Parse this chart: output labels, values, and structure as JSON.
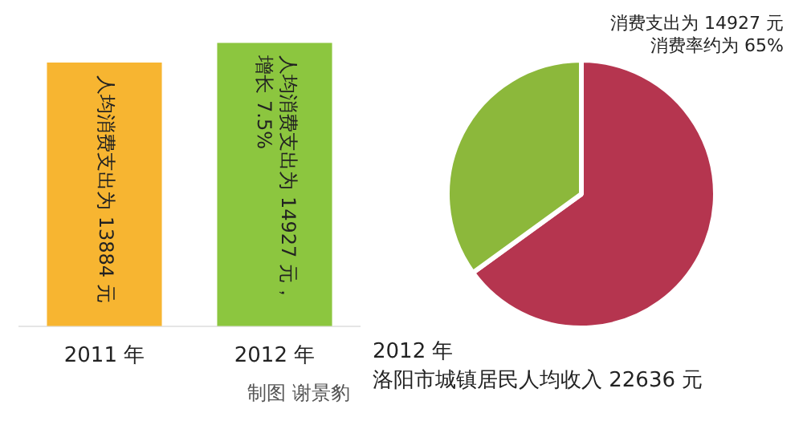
{
  "chart_data": [
    {
      "type": "bar",
      "categories": [
        "2011 年",
        "2012 年"
      ],
      "values": [
        13884,
        14927
      ],
      "colors": [
        "#f7b531",
        "#8cc63f"
      ],
      "value_labels": [
        "人均消费支出为 13884 元",
        "人均消费支出为 14927 元，增长 7.5%"
      ],
      "annotations": [
        "制图 谢景豹"
      ],
      "legend": false,
      "grid": false
    },
    {
      "type": "pie",
      "title": "2012 年",
      "subtitle": "洛阳市城镇居民人均收入 22636 元",
      "categories": [
        null,
        null
      ],
      "values": [
        65,
        35
      ],
      "colors": [
        "#b5354f",
        "#8cb83b"
      ],
      "annotations": [
        "消费支出为 14927 元",
        "消费率约为 65%"
      ],
      "legend": false
    }
  ]
}
